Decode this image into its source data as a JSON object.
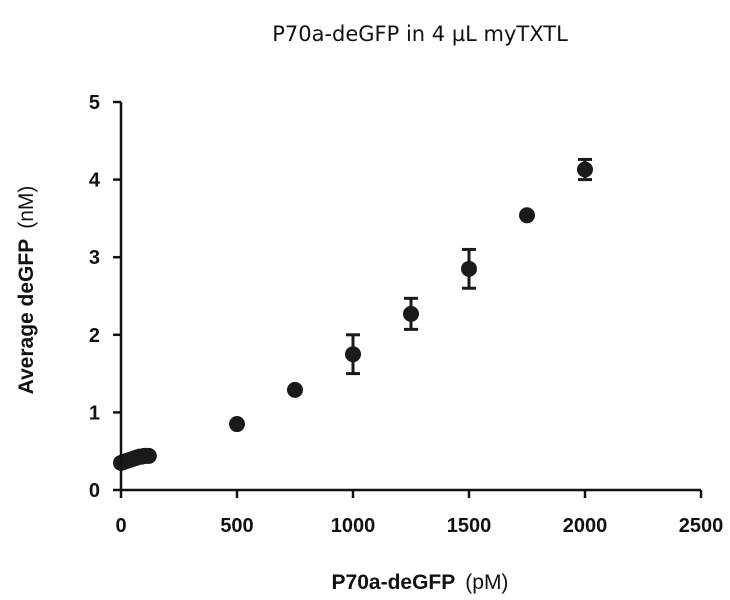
{
  "chart_data": {
    "type": "scatter",
    "title": "P70a-deGFP in 4 µL myTXTL",
    "xlabel_main": "P70a-deGFP",
    "xlabel_unit": "(pM)",
    "ylabel_main": "Average deGFP",
    "ylabel_unit": "(nM)",
    "xlim": [
      0,
      2500
    ],
    "ylim": [
      0,
      5
    ],
    "xticks": [
      "0",
      "500",
      "1000",
      "1500",
      "2000",
      "2500"
    ],
    "yticks": [
      "0",
      "1",
      "2",
      "3",
      "4",
      "5"
    ],
    "grid": false,
    "legend": "none",
    "marker_color": "#1a1a1a",
    "points": [
      {
        "x": 0,
        "y": 0.35,
        "err": 0
      },
      {
        "x": 10,
        "y": 0.36,
        "err": 0
      },
      {
        "x": 20,
        "y": 0.37,
        "err": 0
      },
      {
        "x": 30,
        "y": 0.38,
        "err": 0
      },
      {
        "x": 40,
        "y": 0.39,
        "err": 0
      },
      {
        "x": 50,
        "y": 0.4,
        "err": 0
      },
      {
        "x": 60,
        "y": 0.41,
        "err": 0
      },
      {
        "x": 70,
        "y": 0.42,
        "err": 0
      },
      {
        "x": 80,
        "y": 0.43,
        "err": 0
      },
      {
        "x": 90,
        "y": 0.43,
        "err": 0
      },
      {
        "x": 100,
        "y": 0.44,
        "err": 0
      },
      {
        "x": 110,
        "y": 0.44,
        "err": 0
      },
      {
        "x": 120,
        "y": 0.44,
        "err": 0
      },
      {
        "x": 500,
        "y": 0.85,
        "err": 0
      },
      {
        "x": 750,
        "y": 1.29,
        "err": 0
      },
      {
        "x": 1000,
        "y": 1.75,
        "err": 0.25
      },
      {
        "x": 1250,
        "y": 2.27,
        "err": 0.2
      },
      {
        "x": 1500,
        "y": 2.85,
        "err": 0.25
      },
      {
        "x": 1750,
        "y": 3.54,
        "err": 0
      },
      {
        "x": 2000,
        "y": 4.13,
        "err": 0.13
      }
    ]
  }
}
